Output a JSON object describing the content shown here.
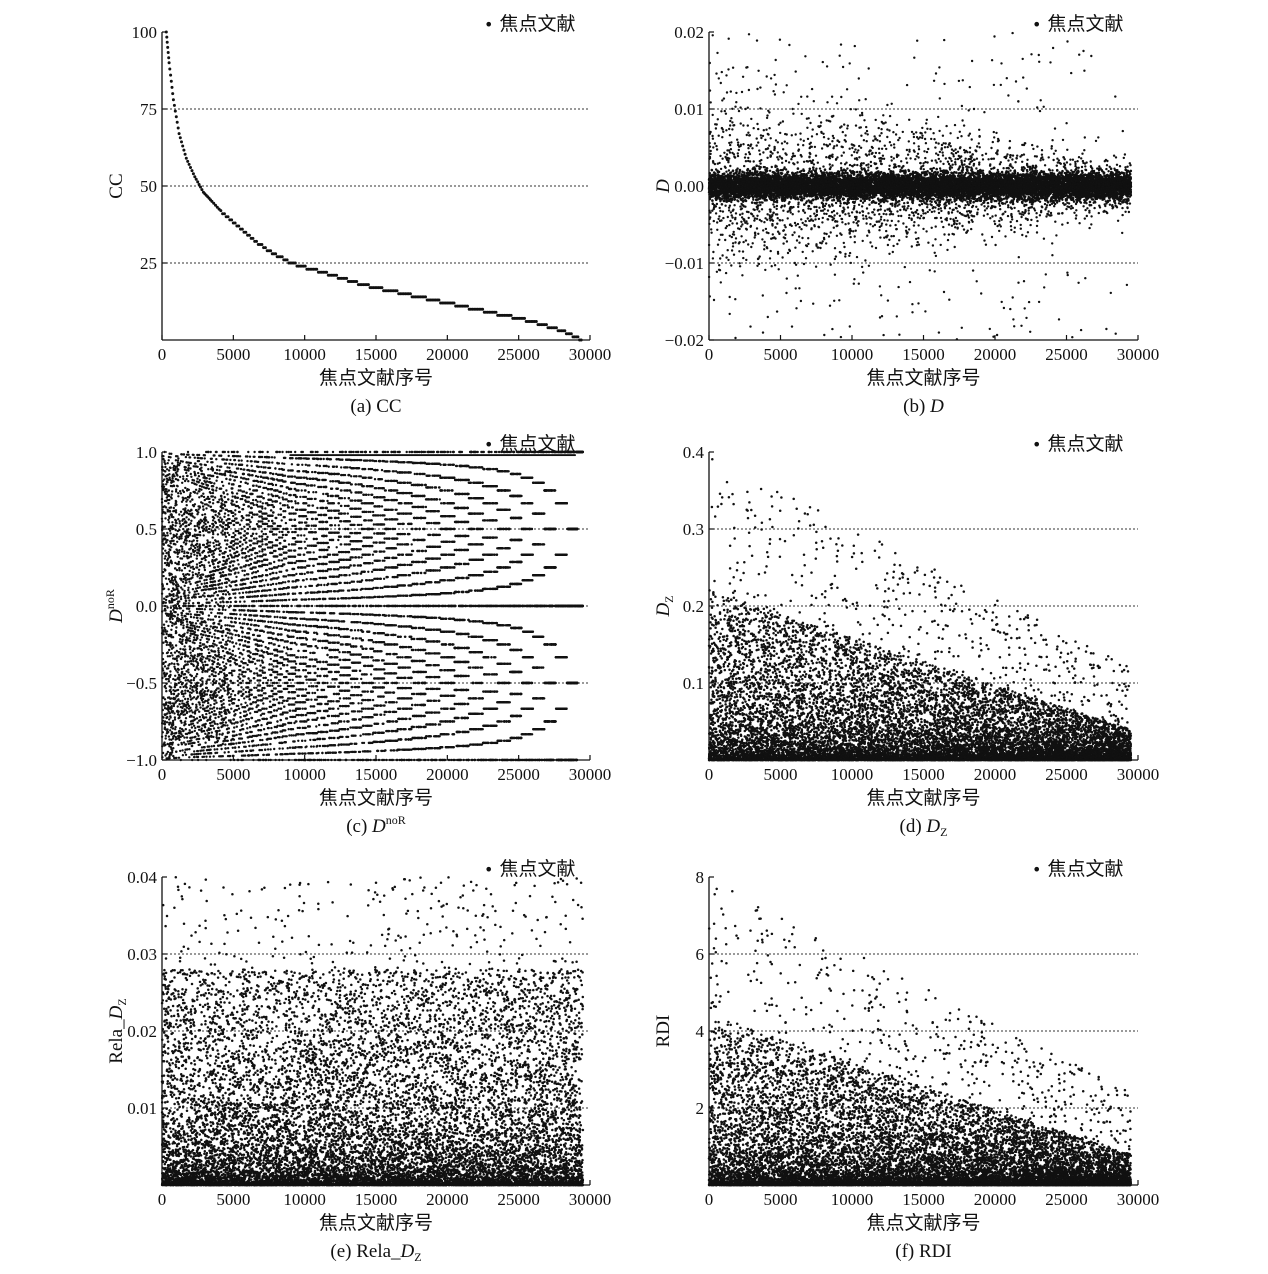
{
  "figure": {
    "legend_marker": "•",
    "colors": {
      "ink": "#111111",
      "grid": "#333333"
    }
  },
  "chart_data": [
    {
      "id": "a",
      "type": "scatter",
      "caption": "(a) CC",
      "ylabel": "CC",
      "xlabel": "焦点文献序号",
      "legend": "焦点文献",
      "legend_position": "top-right",
      "xlim": [
        0,
        30000
      ],
      "ylim": [
        0,
        100
      ],
      "xticks": [
        "0",
        "5000",
        "10000",
        "15000",
        "20000",
        "25000",
        "30000"
      ],
      "yticks": [
        [
          "25",
          25
        ],
        [
          "50",
          50
        ],
        [
          "75",
          75
        ],
        [
          "100",
          100
        ]
      ],
      "hlines": [
        25,
        50,
        75
      ],
      "x_span": [
        0,
        29500
      ],
      "series": [
        {
          "name": "焦点文献",
          "shape": "decreasing-curve",
          "x": [
            300,
            500,
            800,
            1200,
            1700,
            2300,
            2900,
            3500,
            4500,
            5500,
            6500,
            7500,
            9000,
            10500,
            12000,
            14000,
            16000,
            18000,
            20000,
            22000,
            24000,
            26000,
            28000,
            29500
          ],
          "y": [
            100,
            90,
            78,
            67,
            59,
            53,
            48,
            45,
            40,
            36,
            32,
            29,
            25,
            23,
            21,
            18,
            16,
            14,
            12,
            10,
            8,
            6,
            3,
            0
          ]
        }
      ]
    },
    {
      "id": "b",
      "type": "scatter",
      "caption": "(b) ",
      "caption_var": "D",
      "ylabel": "D",
      "xlabel": "焦点文献序号",
      "legend": "焦点文献",
      "legend_position": "top-right",
      "xlim": [
        0,
        30000
      ],
      "ylim": [
        -0.02,
        0.02
      ],
      "xticks": [
        "0",
        "5000",
        "10000",
        "15000",
        "20000",
        "25000",
        "30000"
      ],
      "yticks": [
        [
          "0.02",
          0.02
        ],
        [
          "0.01",
          0.01
        ],
        [
          "0.00",
          0
        ],
        [
          "−0.01",
          -0.01
        ],
        [
          "−0.02",
          -0.02
        ]
      ],
      "hlines": [
        0.01,
        -0.01
      ],
      "x_span": [
        0,
        29500
      ],
      "series": [
        {
          "name": "焦点文献",
          "shape": "dense-band-around-zero",
          "center": 0,
          "core_half_width": 0.0015,
          "spread": 0.02
        }
      ]
    },
    {
      "id": "c",
      "type": "scatter",
      "caption": "(c) ",
      "caption_var": "D",
      "caption_sup": "noR",
      "ylabel": "D",
      "ylabel_sup": "noR",
      "xlabel": "焦点文献序号",
      "legend": "焦点文献",
      "legend_position": "top-right",
      "xlim": [
        0,
        30000
      ],
      "ylim": [
        -1,
        1
      ],
      "xticks": [
        "0",
        "5000",
        "10000",
        "15000",
        "20000",
        "25000",
        "30000"
      ],
      "yticks": [
        [
          "1.0",
          1
        ],
        [
          "0.5",
          0.5
        ],
        [
          "0.0",
          0
        ],
        [
          "−0.5",
          -0.5
        ],
        [
          "−1.0",
          -1
        ]
      ],
      "hlines": [
        0.5,
        0,
        -0.5
      ],
      "x_span": [
        0,
        29500
      ],
      "series": [
        {
          "name": "焦点文献",
          "shape": "discrete-fractions",
          "range": [
            -1,
            1
          ]
        }
      ]
    },
    {
      "id": "d",
      "type": "scatter",
      "caption": "(d) ",
      "caption_var": "D",
      "caption_sub": "Z",
      "ylabel": "D",
      "ylabel_sub": "Z",
      "xlabel": "焦点文献序号",
      "legend": "焦点文献",
      "legend_position": "top-right",
      "xlim": [
        0,
        30000
      ],
      "ylim": [
        0,
        0.4
      ],
      "xticks": [
        "0",
        "5000",
        "10000",
        "15000",
        "20000",
        "25000",
        "30000"
      ],
      "yticks": [
        [
          "0.1",
          0.1
        ],
        [
          "0.2",
          0.2
        ],
        [
          "0.3",
          0.3
        ],
        [
          "0.4",
          0.4
        ]
      ],
      "hlines": [
        0.1,
        0.2,
        0.3
      ],
      "x_span": [
        0,
        29500
      ],
      "series": [
        {
          "name": "焦点文献",
          "shape": "dense-at-bottom-decaying",
          "ymax": 0.4
        }
      ]
    },
    {
      "id": "e",
      "type": "scatter",
      "caption": "(e) Rela_",
      "caption_var": "D",
      "caption_sub": "Z",
      "ylabel": "Rela_",
      "ylabel_var": "D",
      "ylabel_sub": "Z",
      "xlabel": "焦点文献序号",
      "legend": "焦点文献",
      "legend_position": "top-right",
      "xlim": [
        0,
        30000
      ],
      "ylim": [
        0,
        0.04
      ],
      "xticks": [
        "0",
        "5000",
        "10000",
        "15000",
        "20000",
        "25000",
        "30000"
      ],
      "yticks": [
        [
          "0.01",
          0.01
        ],
        [
          "0.02",
          0.02
        ],
        [
          "0.03",
          0.03
        ],
        [
          "0.04",
          0.04
        ]
      ],
      "hlines": [
        0.01,
        0.02,
        0.03
      ],
      "x_span": [
        0,
        29500
      ],
      "series": [
        {
          "name": "焦点文献",
          "shape": "dense-at-bottom-uniform",
          "ymax": 0.04
        }
      ]
    },
    {
      "id": "f",
      "type": "scatter",
      "caption": "(f) RDI",
      "ylabel": "RDI",
      "xlabel": "焦点文献序号",
      "legend": "焦点文献",
      "legend_position": "top-right",
      "xlim": [
        0,
        30000
      ],
      "ylim": [
        0,
        8
      ],
      "xticks": [
        "0",
        "5000",
        "10000",
        "15000",
        "20000",
        "25000",
        "30000"
      ],
      "yticks": [
        [
          "2",
          2
        ],
        [
          "4",
          4
        ],
        [
          "6",
          6
        ],
        [
          "8",
          8
        ]
      ],
      "hlines": [
        2,
        4,
        6
      ],
      "x_span": [
        0,
        29500
      ],
      "series": [
        {
          "name": "焦点文献",
          "shape": "dense-at-bottom-decaying",
          "ymax": 8
        }
      ]
    }
  ]
}
